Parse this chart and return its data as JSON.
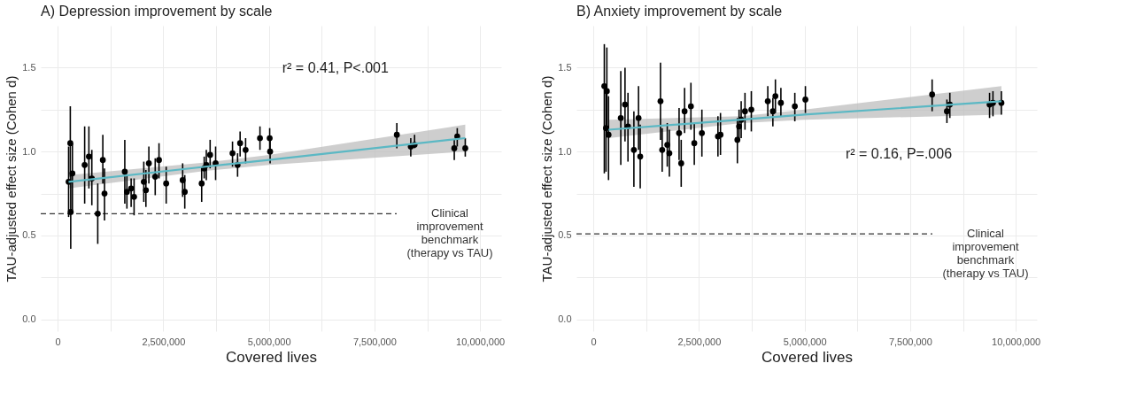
{
  "chart_data": [
    {
      "type": "scatter",
      "title": "A) Depression improvement by scale",
      "xlabel": "Covered lives",
      "ylabel": "TAU-adjusted effect size (Cohen d)",
      "xlim": [
        -400000,
        10500000
      ],
      "xticks": [
        0,
        {
          "value": 1250000,
          "label": null
        },
        {
          "value": 2500000,
          "label": "2,500,000"
        },
        {
          "value": 3750000,
          "label": null
        },
        {
          "value": 5000000,
          "label": "5,000,000"
        },
        {
          "value": 6250000,
          "label": null
        },
        {
          "value": 7500000,
          "label": "7,500,000"
        },
        {
          "value": 8750000,
          "label": null
        },
        {
          "value": 10000000,
          "label": "10,000,000"
        }
      ],
      "ylim": [
        -0.07,
        1.75
      ],
      "yticks": [
        {
          "value": 0,
          "label": "0.0"
        },
        {
          "value": 0.25,
          "label": null
        },
        {
          "value": 0.5,
          "label": "0.5"
        },
        {
          "value": 0.75,
          "label": null
        },
        {
          "value": 1,
          "label": "1.0"
        },
        {
          "value": 1.25,
          "label": null
        },
        {
          "value": 1.5,
          "label": "1.5"
        }
      ],
      "grid": true,
      "annotations": [
        "r² = 0.41, P<.001"
      ],
      "ref_lines": [
        {
          "axis": "y",
          "value": 0.63,
          "label": "Clinical\nimprovement\nbenchmark\n(therapy vs TAU)",
          "line_style": "dashed",
          "color": "#333333"
        }
      ],
      "series": [
        {
          "marker": "circle",
          "color": "#000000",
          "x": [
            260000,
            300000,
            310000,
            350000,
            640000,
            740000,
            810000,
            950000,
            1070000,
            1110000,
            1590000,
            1640000,
            1740000,
            1810000,
            2040000,
            2090000,
            2160000,
            2310000,
            2400000,
            2570000,
            2960000,
            3010000,
            3410000,
            3470000,
            3520000,
            3610000,
            3740000,
            4140000,
            4260000,
            4320000,
            4450000,
            4790000,
            5020000,
            5030000,
            8030000,
            8360000,
            8450000,
            9390000,
            9460000,
            9650000
          ],
          "values": [
            0.82,
            1.05,
            0.64,
            0.87,
            0.92,
            0.97,
            0.84,
            0.63,
            0.95,
            0.75,
            0.88,
            0.76,
            0.78,
            0.73,
            0.82,
            0.77,
            0.93,
            0.85,
            0.95,
            0.81,
            0.83,
            0.76,
            0.81,
            0.9,
            0.92,
            0.98,
            0.93,
            0.99,
            0.92,
            1.05,
            1.01,
            1.08,
            1.08,
            1.0,
            1.1,
            1.03,
            1.04,
            1.02,
            1.09,
            1.02
          ],
          "errors": [
            [
              0.61,
              1.03
            ],
            [
              0.85,
              1.27
            ],
            [
              0.42,
              0.87
            ],
            [
              0.65,
              1.05
            ],
            [
              0.69,
              1.15
            ],
            [
              0.78,
              1.15
            ],
            [
              0.68,
              1.01
            ],
            [
              0.45,
              0.81
            ],
            [
              0.81,
              1.1
            ],
            [
              0.59,
              0.9
            ],
            [
              0.69,
              1.07
            ],
            [
              0.66,
              0.86
            ],
            [
              0.67,
              0.84
            ],
            [
              0.62,
              0.84
            ],
            [
              0.7,
              0.94
            ],
            [
              0.67,
              0.89
            ],
            [
              0.81,
              1.03
            ],
            [
              0.74,
              0.96
            ],
            [
              0.84,
              1.05
            ],
            [
              0.69,
              0.91
            ],
            [
              0.73,
              0.93
            ],
            [
              0.66,
              0.86
            ],
            [
              0.7,
              0.91
            ],
            [
              0.84,
              0.97
            ],
            [
              0.83,
              1.01
            ],
            [
              0.9,
              1.07
            ],
            [
              0.83,
              1.03
            ],
            [
              0.91,
              1.06
            ],
            [
              0.85,
              0.99
            ],
            [
              0.97,
              1.12
            ],
            [
              0.93,
              1.08
            ],
            [
              1.01,
              1.15
            ],
            [
              1.0,
              1.14
            ],
            [
              0.93,
              1.07
            ],
            [
              1.02,
              1.17
            ],
            [
              0.97,
              1.08
            ],
            [
              1.02,
              1.1
            ],
            [
              0.95,
              1.07
            ],
            [
              1.03,
              1.14
            ],
            [
              0.97,
              1.08
            ]
          ]
        },
        {
          "type": "line",
          "color": "#5bb8c4",
          "x": [
            260000,
            3500000,
            5000000,
            9650000
          ],
          "values": [
            0.82,
            0.91,
            0.95,
            1.08
          ],
          "lower": [
            0.78,
            0.885,
            0.92,
            1.0
          ],
          "upper": [
            0.86,
            0.935,
            0.98,
            1.16
          ]
        }
      ]
    },
    {
      "type": "scatter",
      "title": "B) Anxiety improvement by scale",
      "xlabel": "Covered lives",
      "ylabel": "TAU-adjusted effect size (Cohen d)",
      "xlim": [
        -400000,
        10500000
      ],
      "xticks": [
        0,
        {
          "value": 1250000,
          "label": null
        },
        {
          "value": 2500000,
          "label": "2,500,000"
        },
        {
          "value": 3750000,
          "label": null
        },
        {
          "value": 5000000,
          "label": "5,000,000"
        },
        {
          "value": 6250000,
          "label": null
        },
        {
          "value": 7500000,
          "label": "7,500,000"
        },
        {
          "value": 8750000,
          "label": null
        },
        {
          "value": 10000000,
          "label": "10,000,000"
        }
      ],
      "ylim": [
        -0.07,
        1.75
      ],
      "yticks": [
        {
          "value": 0,
          "label": "0.0"
        },
        {
          "value": 0.25,
          "label": null
        },
        {
          "value": 0.5,
          "label": "0.5"
        },
        {
          "value": 0.75,
          "label": null
        },
        {
          "value": 1,
          "label": "1.0"
        },
        {
          "value": 1.25,
          "label": null
        },
        {
          "value": 1.5,
          "label": "1.5"
        }
      ],
      "grid": true,
      "annotations": [
        "r² = 0.16, P=.006"
      ],
      "ref_lines": [
        {
          "axis": "y",
          "value": 0.51,
          "label": "Clinical\nimprovement\nbenchmark\n(therapy vs TAU)",
          "line_style": "dashed",
          "color": "#333333"
        }
      ],
      "series": [
        {
          "marker": "circle",
          "color": "#000000",
          "x": [
            260000,
            300000,
            320000,
            360000,
            650000,
            750000,
            820000,
            960000,
            1070000,
            1110000,
            1590000,
            1630000,
            1750000,
            1800000,
            2030000,
            2080000,
            2160000,
            2310000,
            2390000,
            2570000,
            2950000,
            3010000,
            3410000,
            3450000,
            3500000,
            3590000,
            3740000,
            4130000,
            4250000,
            4310000,
            4440000,
            4770000,
            5020000,
            8020000,
            8370000,
            8440000,
            9380000,
            9460000,
            9660000
          ],
          "values": [
            1.39,
            1.14,
            1.36,
            1.1,
            1.2,
            1.28,
            1.15,
            1.01,
            1.2,
            0.97,
            1.3,
            1.01,
            1.04,
            0.99,
            1.11,
            0.93,
            1.24,
            1.27,
            1.05,
            1.11,
            1.09,
            1.1,
            1.07,
            1.15,
            1.19,
            1.24,
            1.25,
            1.3,
            1.24,
            1.33,
            1.29,
            1.27,
            1.31,
            1.34,
            1.24,
            1.28,
            1.28,
            1.29,
            1.29
          ],
          "errors": [
            [
              0.87,
              1.64
            ],
            [
              0.88,
              1.4
            ],
            [
              1.1,
              1.62
            ],
            [
              0.83,
              1.33
            ],
            [
              0.92,
              1.48
            ],
            [
              1.06,
              1.5
            ],
            [
              0.94,
              1.35
            ],
            [
              0.79,
              1.24
            ],
            [
              1.01,
              1.39
            ],
            [
              0.78,
              1.16
            ],
            [
              1.07,
              1.53
            ],
            [
              0.88,
              1.14
            ],
            [
              0.91,
              1.17
            ],
            [
              0.85,
              1.13
            ],
            [
              0.95,
              1.26
            ],
            [
              0.79,
              1.07
            ],
            [
              1.11,
              1.38
            ],
            [
              1.13,
              1.41
            ],
            [
              0.92,
              1.17
            ],
            [
              0.97,
              1.25
            ],
            [
              0.97,
              1.21
            ],
            [
              0.98,
              1.23
            ],
            [
              0.93,
              1.2
            ],
            [
              1.07,
              1.25
            ],
            [
              1.08,
              1.3
            ],
            [
              1.13,
              1.35
            ],
            [
              1.12,
              1.36
            ],
            [
              1.21,
              1.39
            ],
            [
              1.15,
              1.32
            ],
            [
              1.23,
              1.43
            ],
            [
              1.21,
              1.38
            ],
            [
              1.18,
              1.35
            ],
            [
              1.23,
              1.39
            ],
            [
              1.24,
              1.43
            ],
            [
              1.17,
              1.31
            ],
            [
              1.2,
              1.35
            ],
            [
              1.2,
              1.35
            ],
            [
              1.21,
              1.36
            ],
            [
              1.22,
              1.36
            ]
          ]
        },
        {
          "type": "line",
          "color": "#5bb8c4",
          "x": [
            360000,
            3500000,
            5000000,
            9660000
          ],
          "values": [
            1.13,
            1.19,
            1.22,
            1.3
          ],
          "lower": [
            1.08,
            1.17,
            1.19,
            1.22
          ],
          "upper": [
            1.19,
            1.21,
            1.25,
            1.39
          ]
        }
      ]
    }
  ]
}
